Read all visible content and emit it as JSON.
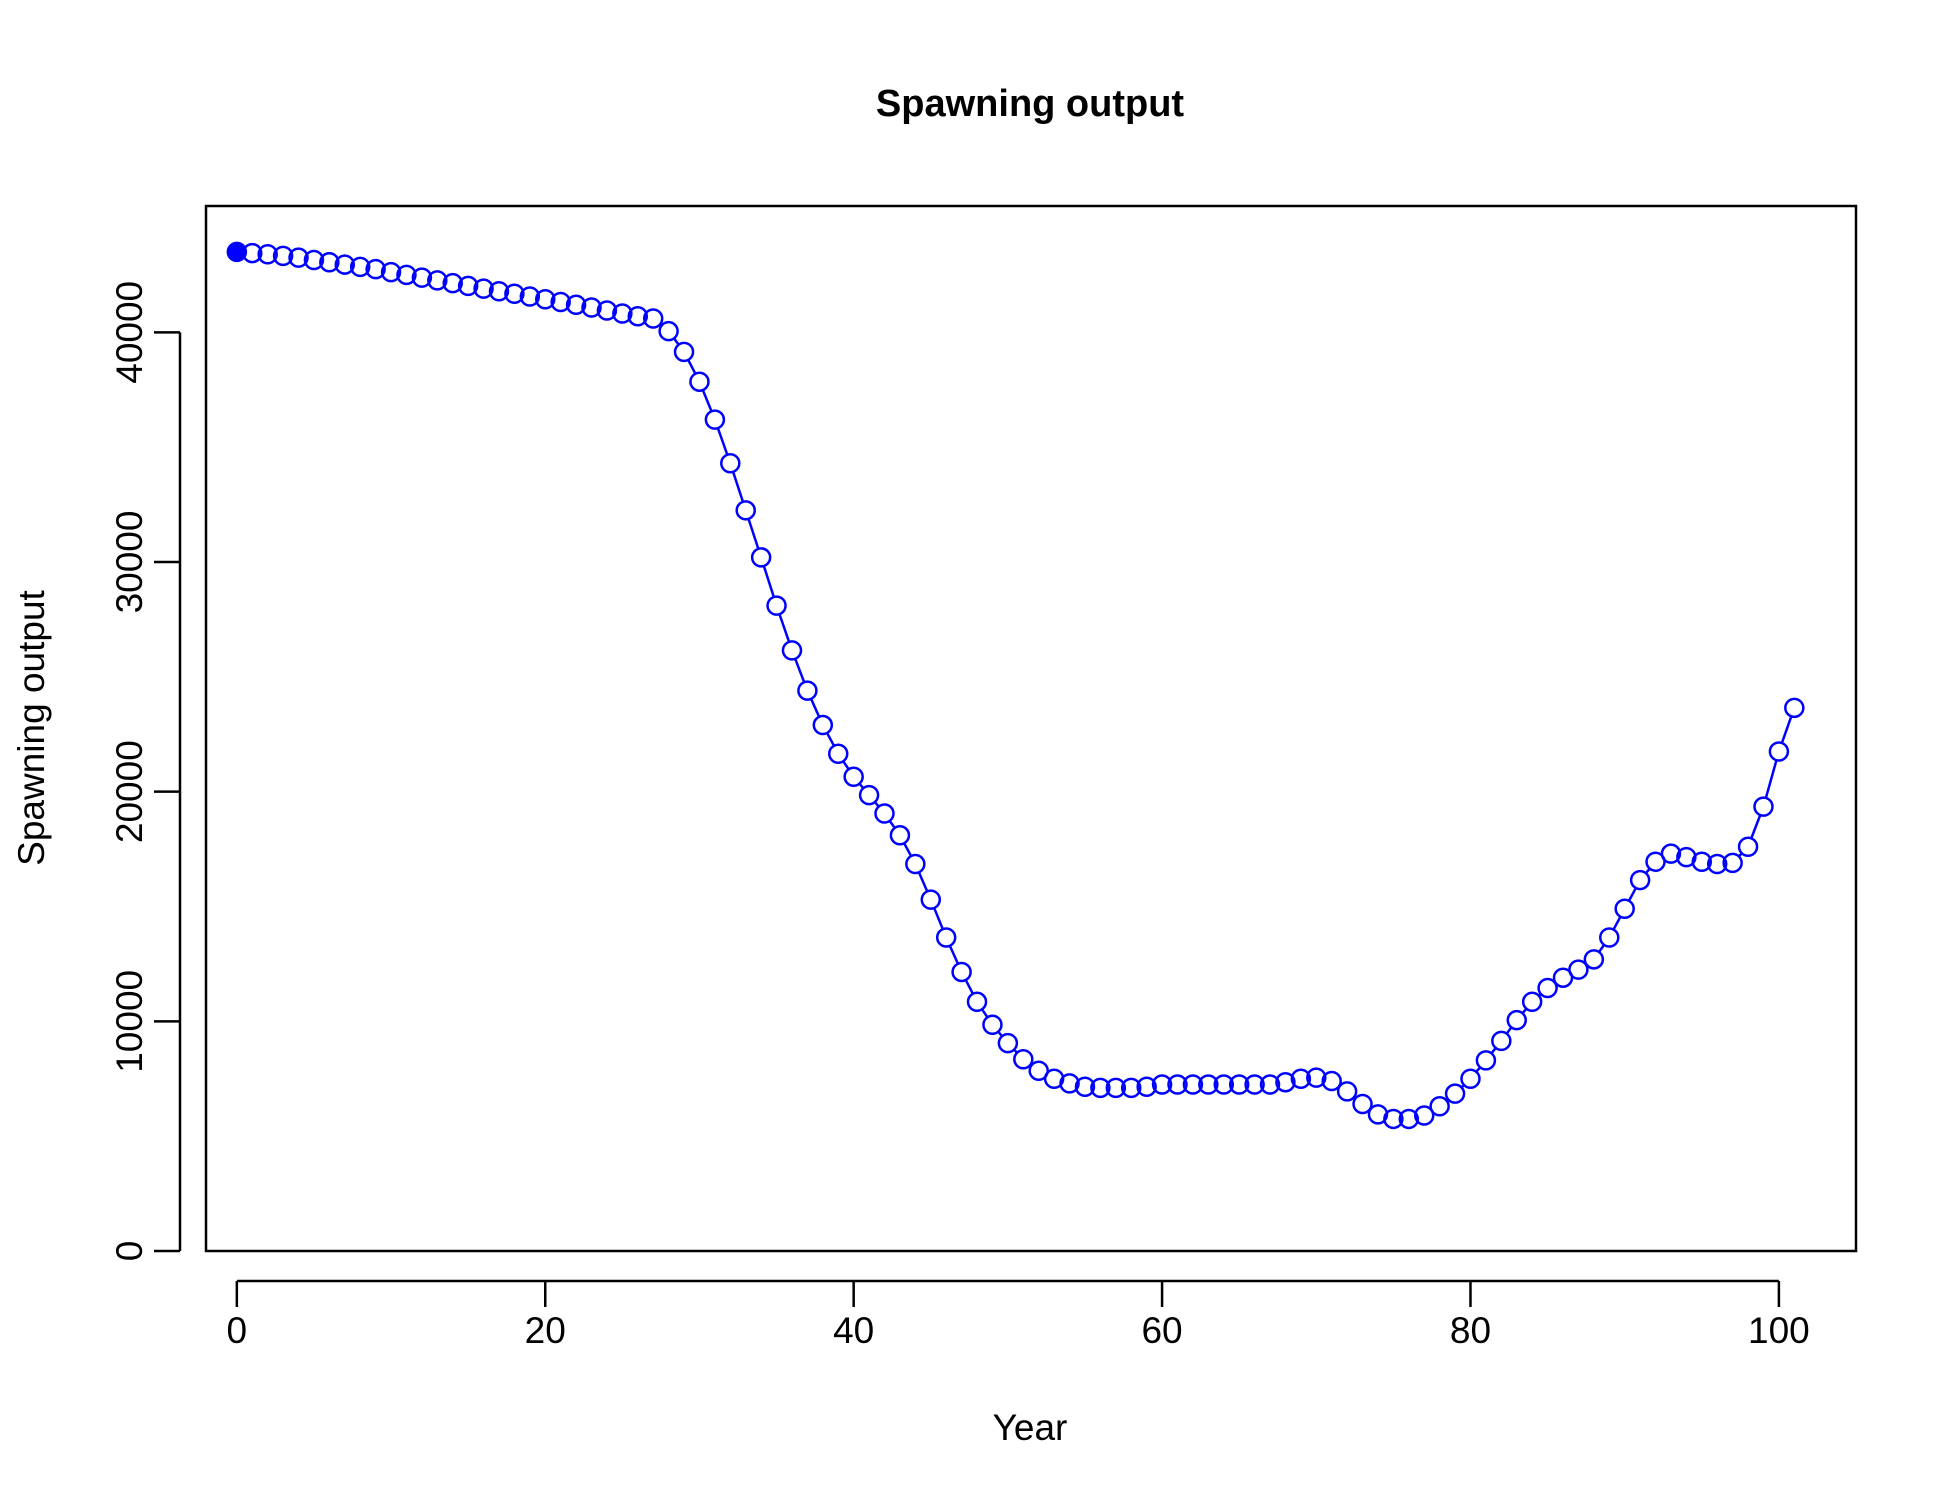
{
  "chart_data": {
    "type": "line",
    "title": "Spawning output",
    "xlabel": "Year",
    "ylabel": "Spawning output",
    "xlim": [
      -2,
      105
    ],
    "ylim": [
      0,
      45500
    ],
    "xticks": [
      0,
      20,
      40,
      60,
      80,
      100
    ],
    "yticks": [
      0,
      10000,
      20000,
      30000,
      40000
    ],
    "x_tick_labels": [
      "0",
      "20",
      "40",
      "60",
      "80",
      "100"
    ],
    "y_tick_labels": [
      "0",
      "10000",
      "20000",
      "30000",
      "40000"
    ],
    "grid": false,
    "color": "#0000ff",
    "first_point_marker": "filled-circle",
    "point_marker": "open-circle",
    "series": [
      {
        "x": [
          0,
          1,
          2,
          3,
          4,
          5,
          6,
          7,
          8,
          9,
          10,
          11,
          12,
          13,
          14,
          15,
          16,
          17,
          18,
          19,
          20,
          21,
          22,
          23,
          24,
          25,
          26,
          27,
          28,
          29,
          30,
          31,
          32,
          33,
          34,
          35,
          36,
          37,
          38,
          39,
          40,
          41,
          42,
          43,
          44,
          45,
          46,
          47,
          48,
          49,
          50,
          51,
          52,
          53,
          54,
          55,
          56,
          57,
          58,
          59,
          60,
          61,
          62,
          63,
          64,
          65,
          66,
          67,
          68,
          69,
          70,
          71,
          72,
          73,
          74,
          75,
          76,
          77,
          78,
          79,
          80,
          81,
          82,
          83,
          84,
          85,
          86,
          87,
          88,
          89,
          90,
          91,
          92,
          93,
          94,
          95,
          96,
          97,
          98,
          99,
          100,
          101
        ],
        "y": [
          43500,
          43450,
          43400,
          43330,
          43250,
          43150,
          43050,
          42950,
          42850,
          42750,
          42620,
          42500,
          42380,
          42260,
          42140,
          42020,
          41900,
          41790,
          41680,
          41560,
          41440,
          41320,
          41200,
          41080,
          40950,
          40820,
          40700,
          40600,
          40050,
          39150,
          37850,
          36200,
          34300,
          32250,
          30200,
          28100,
          26150,
          24400,
          22900,
          21650,
          20650,
          19850,
          19050,
          18100,
          16850,
          15300,
          13650,
          12150,
          10850,
          9850,
          9050,
          8350,
          7850,
          7500,
          7300,
          7150,
          7100,
          7100,
          7100,
          7150,
          7250,
          7250,
          7250,
          7250,
          7250,
          7250,
          7250,
          7250,
          7350,
          7500,
          7550,
          7400,
          6950,
          6400,
          5950,
          5750,
          5750,
          5900,
          6300,
          6850,
          7500,
          8300,
          9150,
          10050,
          10850,
          11450,
          11900,
          12250,
          12700,
          13650,
          14900,
          16150,
          16950,
          17300,
          17150,
          16950,
          16850,
          16900,
          17600,
          19350,
          21750,
          23650
        ]
      }
    ]
  }
}
